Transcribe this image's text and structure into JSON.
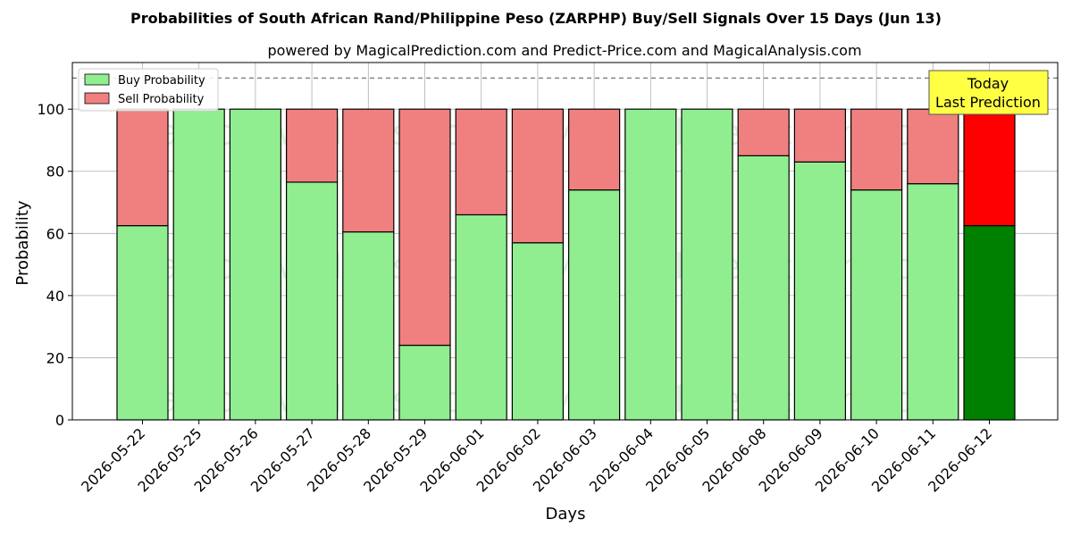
{
  "chart_data": {
    "type": "bar",
    "stacked": true,
    "title": "Probabilities of South African Rand/Philippine Peso (ZARPHP) Buy/Sell Signals Over 15 Days (Jun 13)",
    "subtitle": "powered by MagicalPrediction.com and Predict-Price.com and MagicalAnalysis.com",
    "xlabel": "Days",
    "ylabel": "Probability",
    "ylim": [
      0,
      115
    ],
    "yticks": [
      0,
      20,
      40,
      60,
      80,
      100
    ],
    "reference_line": 110,
    "grid": true,
    "legend_position": "top-left",
    "categories": [
      "2026-05-22",
      "2026-05-25",
      "2026-05-26",
      "2026-05-27",
      "2026-05-28",
      "2026-05-29",
      "2026-06-01",
      "2026-06-02",
      "2026-06-03",
      "2026-06-04",
      "2026-06-05",
      "2026-06-08",
      "2026-06-09",
      "2026-06-10",
      "2026-06-11",
      "2026-06-12"
    ],
    "series": [
      {
        "name": "Buy Probability",
        "color": "#90ee90",
        "highlight_color": "#008000",
        "values": [
          62.5,
          100,
          100,
          76.5,
          60.5,
          24,
          66,
          57,
          74,
          100,
          100,
          85,
          83,
          74,
          76,
          62.5
        ]
      },
      {
        "name": "Sell Probability",
        "color": "#f08080",
        "highlight_color": "#ff0000",
        "values": [
          37.5,
          0,
          0,
          23.5,
          39.5,
          76,
          34,
          43,
          26,
          0,
          0,
          15,
          17,
          26,
          24,
          37.5
        ]
      }
    ],
    "highlight_index": 15,
    "annotation": {
      "line1": "Today",
      "line2": "Last Prediction",
      "bg_color": "#ffff44"
    },
    "watermarks": [
      "MagicalAnalysis.com",
      "MagicalPrediction.com"
    ]
  }
}
